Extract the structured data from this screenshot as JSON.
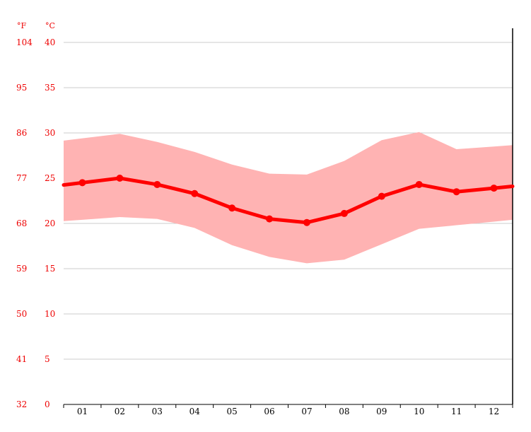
{
  "chart_data": {
    "type": "line",
    "categories": [
      "01",
      "02",
      "03",
      "04",
      "05",
      "06",
      "07",
      "08",
      "09",
      "10",
      "11",
      "12"
    ],
    "series": [
      {
        "values": [
          24.5,
          25.0,
          24.3,
          23.3,
          21.7,
          20.5,
          20.1,
          21.1,
          23.0,
          24.3,
          23.5,
          23.9
        ]
      }
    ],
    "band": {
      "high": [
        29.4,
        29.9,
        29.0,
        27.9,
        26.5,
        25.5,
        25.4,
        26.9,
        29.2,
        30.1,
        28.2,
        28.5
      ],
      "low": [
        20.4,
        20.7,
        20.5,
        19.5,
        17.6,
        16.3,
        15.6,
        16.0,
        17.7,
        19.4,
        19.8,
        20.2
      ]
    },
    "axis_units": {
      "fahrenheit": "°F",
      "celsius": "°C"
    },
    "yticks_celsius": [
      "0",
      "5",
      "10",
      "15",
      "20",
      "25",
      "30",
      "35",
      "40"
    ],
    "yticks_fahrenheit": [
      "32",
      "41",
      "50",
      "59",
      "68",
      "77",
      "86",
      "95",
      "104"
    ],
    "ylim": [
      0,
      40
    ],
    "grid": true,
    "colors": {
      "line": "#ff0000",
      "band": "#ffb3b3",
      "tick_text": "#ee0000",
      "grid": "#cccccc",
      "axis": "#000000"
    }
  }
}
